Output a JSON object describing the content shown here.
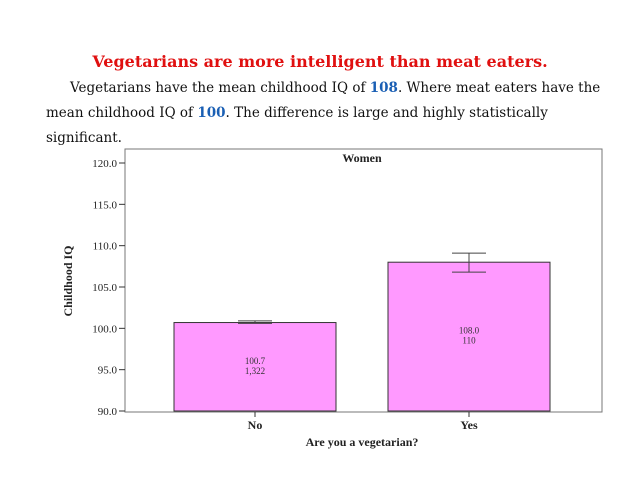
{
  "headline": "Vegetarians are more intelligent than meat eaters.",
  "paragraph": {
    "part1": "Vegetarians have the mean childhood IQ of ",
    "veg_iq": "108",
    "part2": ". Where meat eaters have the mean childhood IQ of ",
    "meat_iq": "100",
    "part3": ".  The difference is large and highly statistically significant."
  },
  "colors": {
    "headline": "#e01010",
    "highlight": "#1a5fb4",
    "bar_fill": "#ff99ff",
    "bar_stroke": "#333333"
  },
  "chart_data": {
    "type": "bar",
    "title": "Women",
    "xlabel": "Are you a vegetarian?",
    "ylabel": "Childhood IQ",
    "categories": [
      "No",
      "Yes"
    ],
    "values": [
      100.7,
      108.0
    ],
    "counts": [
      "1,322",
      "110"
    ],
    "error_bars": [
      [
        100.6,
        100.9
      ],
      [
        106.8,
        109.1
      ]
    ],
    "ylim": [
      90,
      120
    ],
    "yticks": [
      "90.0",
      "95.0",
      "100.0",
      "105.0",
      "110.0",
      "115.0",
      "120.0"
    ],
    "bar_labels": [
      "100.7",
      "108.0"
    ],
    "grid": false
  }
}
